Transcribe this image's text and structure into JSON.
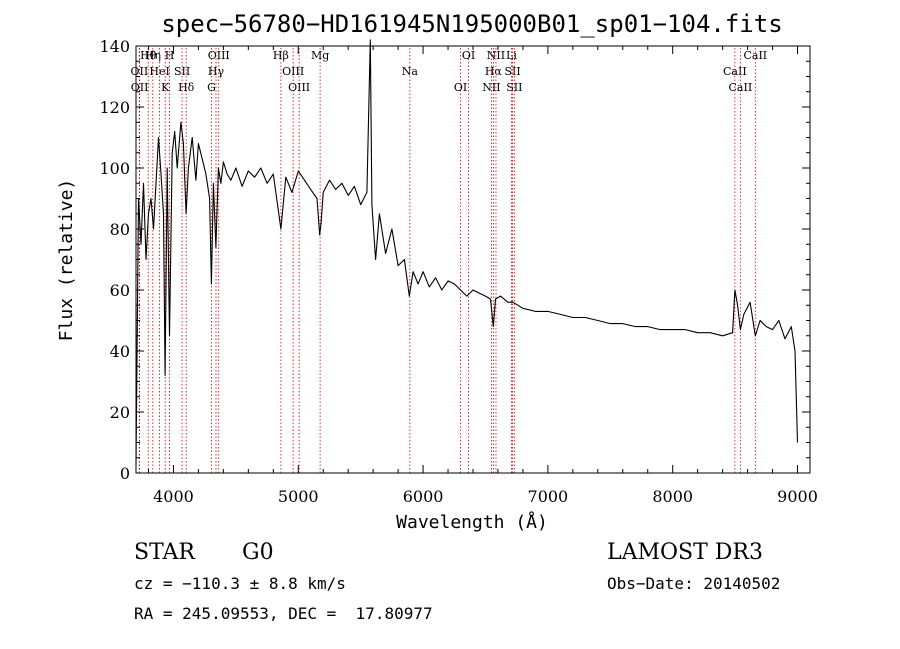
{
  "chart_data": {
    "type": "line",
    "title": "spec−56780−HD161945N195000B01_sp01−104.fits",
    "xlabel": "Wavelength (Å)",
    "ylabel": "Flux (relative)",
    "xlim": [
      3700,
      9100
    ],
    "ylim": [
      0,
      140
    ],
    "xticks": [
      4000,
      5000,
      6000,
      7000,
      8000,
      9000
    ],
    "yticks": [
      0,
      20,
      40,
      60,
      80,
      100,
      120,
      140
    ],
    "grid": false,
    "line_color": "#000000",
    "marker_color": "#cc0000",
    "series": [
      {
        "x": [
          3700,
          3720,
          3740,
          3760,
          3780,
          3800,
          3820,
          3840,
          3860,
          3880,
          3900,
          3920,
          3933,
          3950,
          3968,
          3990,
          4010,
          4030,
          4060,
          4080,
          4101,
          4120,
          4150,
          4180,
          4200,
          4230,
          4260,
          4290,
          4304,
          4320,
          4340,
          4360,
          4380,
          4400,
          4430,
          4460,
          4500,
          4550,
          4600,
          4650,
          4700,
          4750,
          4800,
          4861,
          4900,
          4950,
          5000,
          5050,
          5100,
          5150,
          5172,
          5183,
          5200,
          5250,
          5300,
          5350,
          5400,
          5450,
          5500,
          5550,
          5577,
          5590,
          5620,
          5650,
          5700,
          5750,
          5800,
          5850,
          5890,
          5920,
          5960,
          6000,
          6050,
          6100,
          6150,
          6200,
          6250,
          6300,
          6350,
          6400,
          6450,
          6500,
          6540,
          6563,
          6580,
          6620,
          6680,
          6720,
          6800,
          6900,
          7000,
          7100,
          7200,
          7300,
          7400,
          7500,
          7600,
          7700,
          7800,
          7900,
          8000,
          8100,
          8200,
          8300,
          8400,
          8480,
          8498,
          8520,
          8542,
          8570,
          8620,
          8662,
          8700,
          8750,
          8800,
          8850,
          8900,
          8950,
          8980,
          9000
        ],
        "y": [
          3,
          90,
          75,
          95,
          70,
          85,
          90,
          80,
          95,
          110,
          98,
          85,
          32,
          100,
          45,
          105,
          112,
          100,
          115,
          108,
          85,
          100,
          110,
          96,
          108,
          103,
          98,
          90,
          62,
          95,
          74,
          100,
          95,
          102,
          98,
          96,
          100,
          94,
          99,
          97,
          100,
          95,
          98,
          80,
          97,
          92,
          99,
          96,
          93,
          90,
          78,
          82,
          92,
          96,
          93,
          95,
          91,
          94,
          88,
          92,
          142,
          88,
          70,
          85,
          72,
          80,
          68,
          70,
          58,
          66,
          62,
          66,
          61,
          64,
          60,
          63,
          62,
          60,
          58,
          60,
          59,
          58,
          57,
          48,
          57,
          58,
          56,
          56,
          54,
          53,
          53,
          52,
          51,
          51,
          50,
          49,
          49,
          48,
          48,
          47,
          47,
          47,
          46,
          46,
          45,
          46,
          60,
          55,
          47,
          52,
          56,
          45,
          50,
          48,
          47,
          50,
          44,
          48,
          40,
          10
        ]
      }
    ],
    "lines": [
      {
        "label": "Hθ",
        "wavelength": 3798
      },
      {
        "label": "OII",
        "wavelength": 3727
      },
      {
        "label": "OII",
        "wavelength": 3729
      },
      {
        "label": "Hη",
        "wavelength": 3835
      },
      {
        "label": "HeI",
        "wavelength": 3889
      },
      {
        "label": "K",
        "wavelength": 3934
      },
      {
        "label": "H",
        "wavelength": 3969
      },
      {
        "label": "SII",
        "wavelength": 4069
      },
      {
        "label": "Hδ",
        "wavelength": 4102
      },
      {
        "label": "OIII",
        "wavelength": 4363
      },
      {
        "label": "Hγ",
        "wavelength": 4341
      },
      {
        "label": "G",
        "wavelength": 4305
      },
      {
        "label": "Hβ",
        "wavelength": 4861
      },
      {
        "label": "OIII",
        "wavelength": 4959
      },
      {
        "label": "OIII",
        "wavelength": 5007
      },
      {
        "label": "Mg",
        "wavelength": 5175
      },
      {
        "label": "Na",
        "wavelength": 5894
      },
      {
        "label": "OI",
        "wavelength": 6300
      },
      {
        "label": "OI",
        "wavelength": 6364
      },
      {
        "label": "Hα",
        "wavelength": 6563
      },
      {
        "label": "NII",
        "wavelength": 6548
      },
      {
        "label": "NII",
        "wavelength": 6584
      },
      {
        "label": "SII",
        "wavelength": 6717
      },
      {
        "label": "SII",
        "wavelength": 6731
      },
      {
        "label": "Li",
        "wavelength": 6708
      },
      {
        "label": "CaII",
        "wavelength": 8498
      },
      {
        "label": "CaII",
        "wavelength": 8542
      },
      {
        "label": "CaII",
        "wavelength": 8662
      }
    ]
  },
  "info": {
    "object_class": "STAR",
    "subclass": "G0",
    "survey": "LAMOST DR3",
    "redshift": "cz = −110.3 ± 8.8 km/s",
    "obs_date": "Obs−Date: 20140502",
    "coords": "RA = 245.09553, DEC =  17.80977"
  }
}
